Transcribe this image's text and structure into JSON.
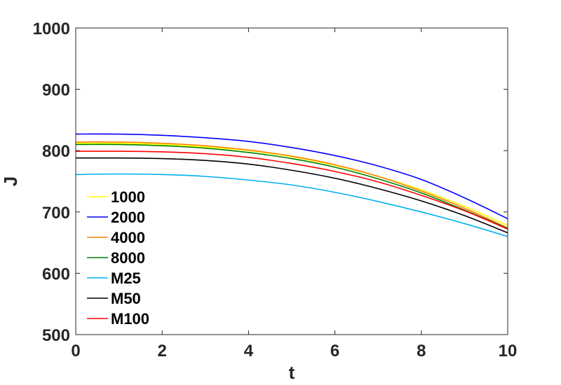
{
  "chart_data": {
    "type": "line",
    "xlabel": "t",
    "ylabel": "J",
    "xlim": [
      0,
      10
    ],
    "ylim": [
      500,
      1000
    ],
    "xticks": [
      "0",
      "2",
      "4",
      "6",
      "8",
      "10"
    ],
    "yticks": [
      "500",
      "600",
      "700",
      "800",
      "900",
      "1000"
    ],
    "grid": false,
    "legend_position": "lower-left",
    "x": [
      0,
      1,
      2,
      3,
      4,
      5,
      6,
      7,
      8,
      9,
      10
    ],
    "series": [
      {
        "name": "1000",
        "color": "#ffff00",
        "values": [
          812,
          812,
          810,
          806,
          800,
          790,
          776,
          758,
          736,
          709,
          678
        ]
      },
      {
        "name": "2000",
        "color": "#0000ff",
        "values": [
          827,
          827,
          825,
          821,
          815,
          805,
          792,
          775,
          753,
          723,
          689
        ]
      },
      {
        "name": "4000",
        "color": "#ff8000",
        "values": [
          814,
          814,
          812,
          808,
          801,
          791,
          777,
          758,
          734,
          706,
          674
        ]
      },
      {
        "name": "8000",
        "color": "#008000",
        "values": [
          810,
          810,
          808,
          804,
          797,
          787,
          773,
          754,
          731,
          703,
          673
        ]
      },
      {
        "name": "M25",
        "color": "#00b0f0",
        "values": [
          761,
          762,
          761,
          758,
          752,
          744,
          732,
          717,
          700,
          681,
          660
        ]
      },
      {
        "name": "M50",
        "color": "#000000",
        "values": [
          788,
          788,
          787,
          784,
          778,
          768,
          755,
          738,
          718,
          694,
          666
        ]
      },
      {
        "name": "M100",
        "color": "#ff0000",
        "values": [
          799,
          799,
          798,
          795,
          789,
          779,
          766,
          749,
          727,
          702,
          672
        ]
      }
    ]
  }
}
